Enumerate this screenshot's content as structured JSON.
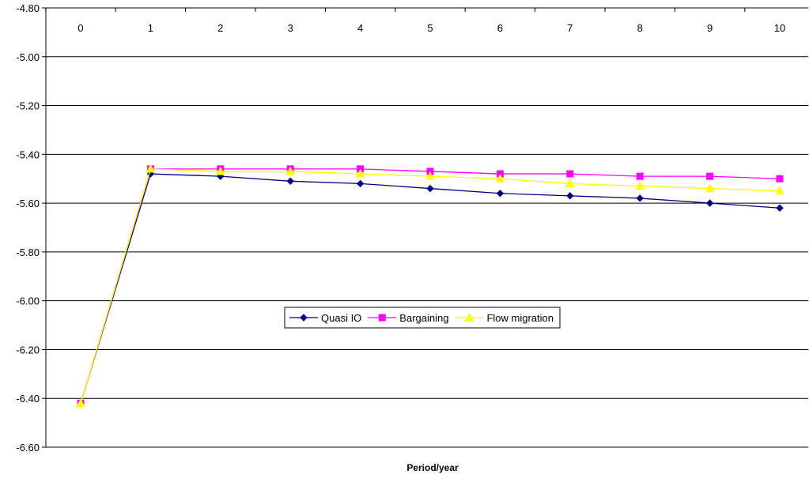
{
  "chart_data": {
    "type": "line",
    "xlabel": "Period/year",
    "ylabel": "",
    "categories": [
      "0",
      "1",
      "2",
      "3",
      "4",
      "5",
      "6",
      "7",
      "8",
      "9",
      "10"
    ],
    "ylim": [
      -6.6,
      -4.8
    ],
    "y_ticks": [
      "-4.80",
      "-5.00",
      "-5.20",
      "-5.40",
      "-5.60",
      "-5.80",
      "-6.00",
      "-6.20",
      "-6.40",
      "-6.60"
    ],
    "y_tick_values": [
      -4.8,
      -5.0,
      -5.2,
      -5.4,
      -5.6,
      -5.8,
      -6.0,
      -6.2,
      -6.4,
      -6.6
    ],
    "grid": "horizontal",
    "x_axis_position": "top",
    "legend_position": "center",
    "series": [
      {
        "name": "Quasi IO",
        "color": "#000080",
        "marker": "diamond",
        "values": [
          -6.42,
          -5.48,
          -5.49,
          -5.51,
          -5.52,
          -5.54,
          -5.56,
          -5.57,
          -5.58,
          -5.6,
          -5.62
        ]
      },
      {
        "name": "Bargaining",
        "color": "#FF00FF",
        "marker": "square",
        "values": [
          -6.42,
          -5.46,
          -5.46,
          -5.46,
          -5.46,
          -5.47,
          -5.48,
          -5.48,
          -5.49,
          -5.49,
          -5.5
        ]
      },
      {
        "name": "Flow migration",
        "color": "#FFFF00",
        "marker": "triangle",
        "values": [
          -6.42,
          -5.46,
          -5.47,
          -5.47,
          -5.48,
          -5.49,
          -5.5,
          -5.52,
          -5.53,
          -5.54,
          -5.55
        ]
      }
    ]
  }
}
